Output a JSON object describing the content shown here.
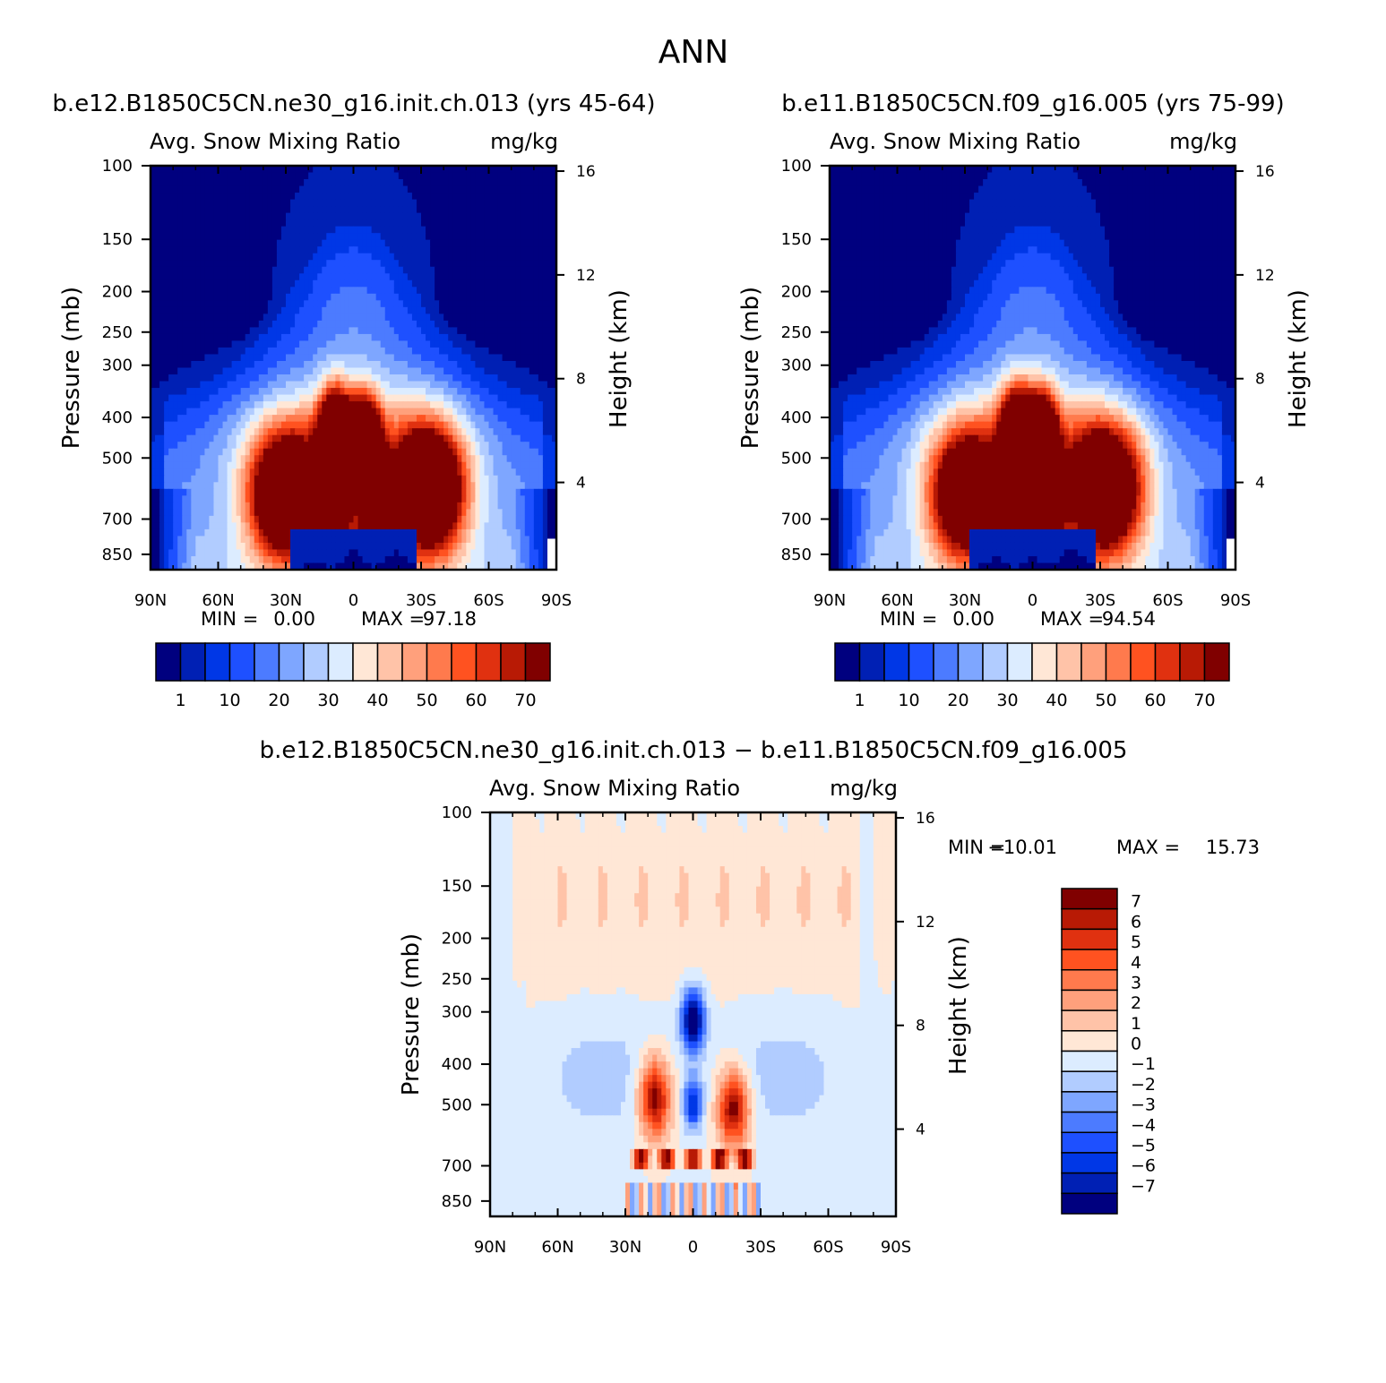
{
  "page_title": "ANN",
  "chart_data": [
    {
      "type": "heatmap",
      "subtitle": "b.e12.B1850C5CN.ne30_g16.init.ch.013 (yrs 45-64)",
      "title_left": "Avg. Snow Mixing Ratio",
      "title_right": "mg/kg",
      "ylabel": "Pressure (mb)",
      "ylabel_right": "Height (km)",
      "x_ticks": [
        "90N",
        "60N",
        "30N",
        "0",
        "30S",
        "60S",
        "90S"
      ],
      "y_ticks": [
        "100",
        "150",
        "200",
        "250",
        "300",
        "400",
        "500",
        "700",
        "850"
      ],
      "y_right_ticks": [
        "16",
        "12",
        "8",
        "4"
      ],
      "min_label": "MIN =",
      "min_value": "0.00",
      "max_label": "MAX =",
      "max_value": "97.18",
      "colorbar_labels": [
        "1",
        "10",
        "20",
        "30",
        "40",
        "50",
        "60",
        "70"
      ],
      "colors": [
        "#00007f",
        "#0020b4",
        "#0037e6",
        "#1e50ff",
        "#4c7bff",
        "#7ea6ff",
        "#b1ccff",
        "#dcecff",
        "#ffe7d6",
        "#ffc3a8",
        "#ffa07c",
        "#ff7a4d",
        "#ff5220",
        "#e03110",
        "#b81a05",
        "#800000"
      ],
      "peaks": [
        {
          "lat": 8,
          "p": 430,
          "v": 85
        },
        {
          "lat": -5,
          "p": 450,
          "v": 78
        },
        {
          "lat": 30,
          "p": 620,
          "v": 88
        },
        {
          "lat": -33,
          "p": 600,
          "v": 95
        },
        {
          "lat": 8,
          "p": 690,
          "v": 74
        },
        {
          "lat": -9,
          "p": 700,
          "v": 68
        }
      ]
    },
    {
      "type": "heatmap",
      "subtitle": "b.e11.B1850C5CN.f09_g16.005 (yrs 75-99)",
      "title_left": "Avg. Snow Mixing Ratio",
      "title_right": "mg/kg",
      "ylabel": "Pressure (mb)",
      "ylabel_right": "Height (km)",
      "x_ticks": [
        "90N",
        "60N",
        "30N",
        "0",
        "30S",
        "60S",
        "90S"
      ],
      "y_ticks": [
        "100",
        "150",
        "200",
        "250",
        "300",
        "400",
        "500",
        "700",
        "850"
      ],
      "y_right_ticks": [
        "16",
        "12",
        "8",
        "4"
      ],
      "min_label": "MIN =",
      "min_value": "0.00",
      "max_label": "MAX =",
      "max_value": "94.54",
      "colorbar_labels": [
        "1",
        "10",
        "20",
        "30",
        "40",
        "50",
        "60",
        "70"
      ],
      "colors": [
        "#00007f",
        "#0020b4",
        "#0037e6",
        "#1e50ff",
        "#4c7bff",
        "#7ea6ff",
        "#b1ccff",
        "#dcecff",
        "#ffe7d6",
        "#ffc3a8",
        "#ffa07c",
        "#ff7a4d",
        "#ff5220",
        "#e03110",
        "#b81a05",
        "#800000"
      ],
      "peaks": [
        {
          "lat": 7,
          "p": 430,
          "v": 84
        },
        {
          "lat": -4,
          "p": 440,
          "v": 82
        },
        {
          "lat": 29,
          "p": 620,
          "v": 82
        },
        {
          "lat": -32,
          "p": 600,
          "v": 92
        },
        {
          "lat": 7,
          "p": 690,
          "v": 72
        },
        {
          "lat": -7,
          "p": 700,
          "v": 66
        }
      ]
    },
    {
      "type": "heatmap",
      "subtitle": "b.e12.B1850C5CN.ne30_g16.init.ch.013 − b.e11.B1850C5CN.f09_g16.005",
      "title_left": "Avg. Snow Mixing Ratio",
      "title_right": "mg/kg",
      "ylabel": "Pressure (mb)",
      "ylabel_right": "Height (km)",
      "x_ticks": [
        "90N",
        "60N",
        "30N",
        "0",
        "30S",
        "60S",
        "90S"
      ],
      "y_ticks": [
        "100",
        "150",
        "200",
        "250",
        "300",
        "400",
        "500",
        "700",
        "850"
      ],
      "y_right_ticks": [
        "16",
        "12",
        "8",
        "4"
      ],
      "min_label": "MIN =",
      "min_value": "−10.01",
      "max_label": "MAX =",
      "max_value": "15.73",
      "colorbar_labels": [
        "7",
        "6",
        "5",
        "4",
        "3",
        "2",
        "1",
        "0",
        "−1",
        "−2",
        "−3",
        "−4",
        "−5",
        "−6",
        "−7"
      ],
      "colors": [
        "#800000",
        "#b81a05",
        "#e03110",
        "#ff5220",
        "#ff7a4d",
        "#ffa07c",
        "#ffc3a8",
        "#ffe7d6",
        "#dcecff",
        "#b1ccff",
        "#7ea6ff",
        "#4c7bff",
        "#1e50ff",
        "#0037e6",
        "#0020b4",
        "#00007f"
      ]
    }
  ]
}
